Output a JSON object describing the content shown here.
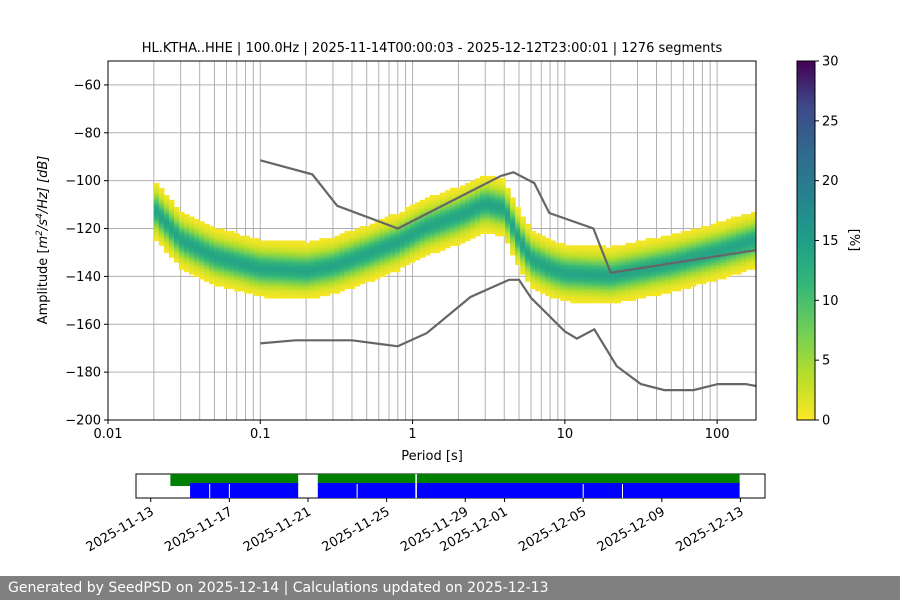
{
  "chart_data": [
    {
      "type": "heatmap",
      "title": "HL.KTHA..HHE | 100.0Hz | 2025-11-14T00:00:03 - 2025-12-12T23:00:01 | 1276 segments",
      "xlabel": "Period [s]",
      "ylabel_parts": [
        "Amplitude [",
        "m",
        "2",
        "/s",
        "4",
        "/Hz] [dB]"
      ],
      "x_scale": "log",
      "xlim": [
        0.01,
        180
      ],
      "ylim": [
        -200,
        -50
      ],
      "xticks": [
        0.01,
        0.1,
        1,
        10,
        100
      ],
      "xtick_labels": [
        "0.01",
        "0.1",
        "1",
        "10",
        "100"
      ],
      "yticks": [
        -200,
        -180,
        -160,
        -140,
        -120,
        -100,
        -80,
        -60
      ],
      "ytick_labels": [
        "−200",
        "−180",
        "−160",
        "−140",
        "−120",
        "−100",
        "−80",
        "−60"
      ],
      "grid": true,
      "colorbar": {
        "label": "[%]",
        "range": [
          0,
          30
        ],
        "ticks": [
          0,
          5,
          10,
          15,
          20,
          25,
          30
        ],
        "colormap": "viridis_r"
      },
      "mode_curve": [
        {
          "period": 0.02,
          "db": -112
        },
        {
          "period": 0.03,
          "db": -125
        },
        {
          "period": 0.05,
          "db": -132
        },
        {
          "period": 0.1,
          "db": -137
        },
        {
          "period": 0.2,
          "db": -138
        },
        {
          "period": 0.3,
          "db": -136
        },
        {
          "period": 0.5,
          "db": -131
        },
        {
          "period": 0.8,
          "db": -126
        },
        {
          "period": 1.2,
          "db": -120
        },
        {
          "period": 2,
          "db": -115
        },
        {
          "period": 3,
          "db": -110
        },
        {
          "period": 4,
          "db": -112
        },
        {
          "period": 5,
          "db": -125
        },
        {
          "period": 6,
          "db": -133
        },
        {
          "period": 8,
          "db": -137
        },
        {
          "period": 10,
          "db": -139
        },
        {
          "period": 20,
          "db": -140
        },
        {
          "period": 50,
          "db": -135
        },
        {
          "period": 100,
          "db": -130
        },
        {
          "period": 180,
          "db": -125
        }
      ],
      "series": [
        {
          "role": "model_high",
          "color": "#666666",
          "points": [
            {
              "period": 0.1,
              "db": -91.5
            },
            {
              "period": 0.22,
              "db": -97.4
            },
            {
              "period": 0.32,
              "db": -110.5
            },
            {
              "period": 0.8,
              "db": -120.0
            },
            {
              "period": 3.8,
              "db": -98.0
            },
            {
              "period": 4.6,
              "db": -96.5
            },
            {
              "period": 6.3,
              "db": -101.0
            },
            {
              "period": 7.9,
              "db": -113.5
            },
            {
              "period": 15.4,
              "db": -120.0
            },
            {
              "period": 20.0,
              "db": -138.5
            },
            {
              "period": 180,
              "db": -129.0
            }
          ]
        },
        {
          "role": "model_low",
          "color": "#666666",
          "points": [
            {
              "period": 0.1,
              "db": -168.0
            },
            {
              "period": 0.17,
              "db": -166.7
            },
            {
              "period": 0.4,
              "db": -166.7
            },
            {
              "period": 0.8,
              "db": -169.2
            },
            {
              "period": 1.24,
              "db": -163.7
            },
            {
              "period": 2.4,
              "db": -148.6
            },
            {
              "period": 4.3,
              "db": -141.4
            },
            {
              "period": 5.0,
              "db": -141.4
            },
            {
              "period": 6.0,
              "db": -149.0
            },
            {
              "period": 10.0,
              "db": -163.0
            },
            {
              "period": 12.0,
              "db": -166.0
            },
            {
              "period": 15.6,
              "db": -162.1
            },
            {
              "period": 21.9,
              "db": -177.5
            },
            {
              "period": 31.6,
              "db": -185.0
            },
            {
              "period": 45.0,
              "db": -187.5
            },
            {
              "period": 70.0,
              "db": -187.5
            },
            {
              "period": 101.0,
              "db": -185.0
            },
            {
              "period": 154.0,
              "db": -185.0
            },
            {
              "period": 180,
              "db": -185.8
            }
          ]
        }
      ]
    },
    {
      "type": "timeline",
      "x_axis": "date",
      "xlim": [
        "2025-11-12T06:00",
        "2025-12-14T06:00"
      ],
      "xtick_labels": [
        "2025-11-13",
        "2025-11-17",
        "2025-11-21",
        "2025-11-25",
        "2025-11-29",
        "2025-12-01",
        "2025-12-05",
        "2025-12-09",
        "2025-12-13"
      ],
      "xtick_dates": [
        "2025-11-13",
        "2025-11-17",
        "2025-11-21",
        "2025-11-25",
        "2025-11-29",
        "2025-12-01",
        "2025-12-05",
        "2025-12-09",
        "2025-12-13"
      ],
      "data_coverage": {
        "color": "#008000",
        "intervals": [
          [
            "2025-11-14T00:00",
            "2025-11-20T12:00"
          ],
          [
            "2025-11-21T12:00",
            "2025-12-12T23:00"
          ]
        ]
      },
      "psd_coverage": {
        "color": "#0000ff",
        "intervals": [
          [
            "2025-11-15T00:00",
            "2025-11-20T12:00"
          ],
          [
            "2025-11-21T12:00",
            "2025-12-12T23:00"
          ]
        ]
      },
      "markers": [
        "2025-11-16T00:00",
        "2025-11-17T00:00",
        "2025-11-23T12:00",
        "2025-11-26T12:00",
        "2025-12-05T00:00",
        "2025-12-07T00:00"
      ],
      "gap_markers": [
        "2025-11-26T12:00"
      ]
    }
  ],
  "footer": {
    "text": "Generated by SeedPSD on 2025-12-14 | Calculations updated on 2025-12-13"
  }
}
